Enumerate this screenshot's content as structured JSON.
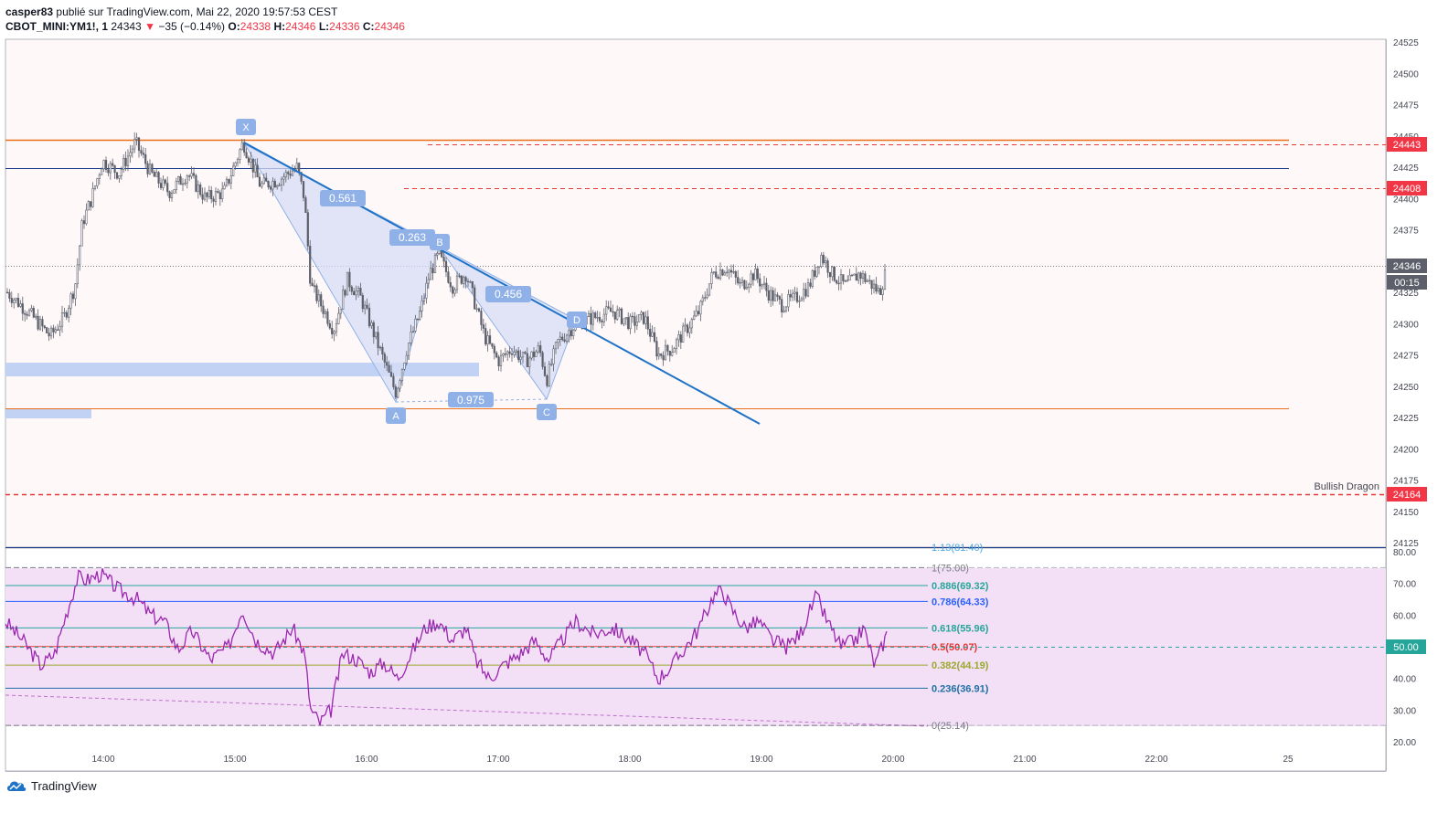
{
  "header": {
    "author": "casper83",
    "published_text": "publié sur TradingView.com, Mai 22, 2020 19:57:53 CEST",
    "symbol": "CBOT_MINI:YM1!, 1",
    "last": "24343",
    "change": "−35 (−0.14%)",
    "o_label": "O:",
    "o_value": "24338",
    "h_label": "H:",
    "h_value": "24346",
    "l_label": "L:",
    "l_value": "24336",
    "c_label": "C:",
    "c_value": "24346"
  },
  "price_axis": {
    "ticks": [
      "24525",
      "24500",
      "24475",
      "24450",
      "24425",
      "24400",
      "24375",
      "24350",
      "24325",
      "24300",
      "24275",
      "24250",
      "24225",
      "24200",
      "24175",
      "24150",
      "24125"
    ],
    "badges": [
      {
        "text": "24443",
        "color": "#f23645"
      },
      {
        "text": "24408",
        "color": "#f23645"
      },
      {
        "text": "24346",
        "color": "#5d606b"
      },
      {
        "text": "00:15",
        "color": "#5d606b"
      },
      {
        "text": "24164",
        "color": "#f23645"
      }
    ]
  },
  "osc_axis": {
    "ticks": [
      "80.00",
      "70.00",
      "60.00",
      "50.00",
      "40.00",
      "30.00",
      "20.00"
    ],
    "badge": "50.00"
  },
  "time_axis": [
    "14:00",
    "15:00",
    "16:00",
    "17:00",
    "18:00",
    "19:00",
    "20:00",
    "21:00",
    "22:00",
    "25"
  ],
  "pattern": {
    "points": [
      "X",
      "A",
      "B",
      "C",
      "D"
    ],
    "ratios": [
      "0.561",
      "0.263",
      "0.456",
      "0.975"
    ]
  },
  "annotations": {
    "pattern_name": "Bullish Dragon"
  },
  "fib_levels": [
    {
      "label": "1.13(81.40)",
      "color": "#4aa7e0"
    },
    {
      "label": "1(75.00)",
      "color": "#787b86"
    },
    {
      "label": "0.886(69.32)",
      "color": "#26a69a"
    },
    {
      "label": "0.786(64.33)",
      "color": "#2962ff"
    },
    {
      "label": "0.618(55.96)",
      "color": "#26a69a"
    },
    {
      "label": "0.5(50.07)",
      "color": "#e53935"
    },
    {
      "label": "0.382(44.19)",
      "color": "#9aa82c"
    },
    {
      "label": "0.236(36.91)",
      "color": "#1e6fa3"
    },
    {
      "label": "0(25.14)",
      "color": "#787b86"
    }
  ],
  "branding": {
    "name": "TradingView"
  },
  "colors": {
    "price_bg": "#fff8f8",
    "osc_band": "#f3e0f7",
    "candle": "#5d606b",
    "trendline": "#1e73c8",
    "pattern_fill": "#d6def5",
    "pattern_label": "#8fb1e8",
    "rsi": "#9c27b0",
    "red_dash": "#e53935",
    "orange_line": "#e8701a",
    "navy_line": "#1a3a8a"
  }
}
